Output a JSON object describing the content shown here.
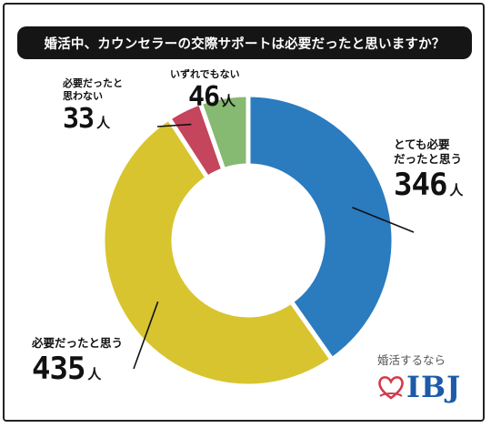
{
  "title": "婚活中、カウンセラーの交際サポートは必要だったと思いますか？",
  "chart_data": {
    "type": "pie",
    "donut": true,
    "unit": "人",
    "slices": [
      {
        "label": "とても必要だったと思う",
        "label_lines": [
          "とても必要",
          "だったと思う"
        ],
        "value": 346,
        "color": "#2b7bbf"
      },
      {
        "label": "必要だったと思う",
        "label_lines": [
          "必要だったと思う"
        ],
        "value": 435,
        "color": "#d8c42f"
      },
      {
        "label": "必要だったと思わない",
        "label_lines": [
          "必要だったと",
          "思わない"
        ],
        "value": 33,
        "color": "#c4455c"
      },
      {
        "label": "いずれでもない",
        "label_lines": [
          "いずれでもない"
        ],
        "value": 46,
        "color": "#86b971"
      }
    ]
  },
  "brand": {
    "tagline": "婚活するなら",
    "name": "IBJ",
    "heart_color": "#d23a4a"
  }
}
